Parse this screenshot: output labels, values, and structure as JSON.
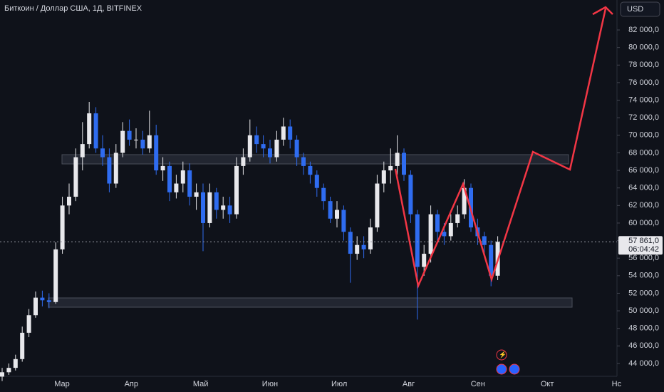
{
  "chart_data": {
    "type": "candlestick",
    "title": "Биткоин / Доллар США, 1Д, BITFINEX",
    "currency": "USD",
    "x_labels": [
      "Мар",
      "Апр",
      "Май",
      "Июн",
      "Июл",
      "Авг",
      "Сен",
      "Окт",
      "Нс"
    ],
    "ylim": [
      42000,
      84000
    ],
    "yticks": [
      {
        "value": 44000,
        "label": "44 000,0"
      },
      {
        "value": 46000,
        "label": "46 000,0"
      },
      {
        "value": 48000,
        "label": "48 000,0"
      },
      {
        "value": 50000,
        "label": "50 000,0"
      },
      {
        "value": 52000,
        "label": "52 000,0"
      },
      {
        "value": 54000,
        "label": "54 000,0"
      },
      {
        "value": 56000,
        "label": "56 000,0"
      },
      {
        "value": 58000,
        "label": "58 000,0"
      },
      {
        "value": 60000,
        "label": "60 000,0"
      },
      {
        "value": 62000,
        "label": "62 000,0"
      },
      {
        "value": 64000,
        "label": "64 000,0"
      },
      {
        "value": 66000,
        "label": "66 000,0"
      },
      {
        "value": 68000,
        "label": "68 000,0"
      },
      {
        "value": 70000,
        "label": "70 000,0"
      },
      {
        "value": 72000,
        "label": "72 000,0"
      },
      {
        "value": 74000,
        "label": "74 000,0"
      },
      {
        "value": 76000,
        "label": "76 000,0"
      },
      {
        "value": 78000,
        "label": "78 000,0"
      },
      {
        "value": 80000,
        "label": "80 000,0"
      },
      {
        "value": 82000,
        "label": "82 000,0"
      }
    ],
    "up_color": "#e8e8ec",
    "down_color": "#2f6cf0",
    "open": [
      42500,
      43000,
      43500,
      44500,
      47500,
      49500,
      51500,
      51200,
      51000,
      57000,
      62000,
      63000,
      67500,
      69000,
      72500,
      68500,
      67500,
      64500,
      68000,
      70500,
      69500,
      69500,
      68500,
      70000,
      66000,
      66500,
      63500,
      64500,
      66000,
      63000,
      63500,
      60000,
      63500,
      61500,
      62000,
      61000,
      66500,
      67500,
      70000,
      69000,
      68500,
      67500,
      69500,
      71000,
      69500,
      67500,
      66500,
      65500,
      64000,
      62500,
      60500,
      61500,
      59000,
      56500,
      57500,
      57000,
      59500,
      64500,
      66000,
      66500,
      68000,
      65500,
      61000,
      55000,
      56500,
      61000,
      59000,
      58500,
      60000,
      61000,
      64000,
      59500,
      58500,
      57500,
      54000
    ],
    "high": [
      43500,
      44000,
      45000,
      48200,
      50200,
      52200,
      52300,
      52000,
      57800,
      63000,
      64500,
      68500,
      71500,
      73800,
      73200,
      70000,
      68500,
      69000,
      71500,
      71800,
      70800,
      70500,
      72800,
      71200,
      67500,
      67000,
      65500,
      67000,
      66800,
      64500,
      64500,
      64500,
      64000,
      63000,
      63000,
      67500,
      68500,
      71800,
      71000,
      70000,
      69500,
      70500,
      72000,
      71800,
      70000,
      68000,
      67000,
      66000,
      64500,
      63000,
      62500,
      62000,
      59500,
      58500,
      58500,
      60500,
      65500,
      67000,
      68500,
      70000,
      68500,
      66000,
      61500,
      57500,
      62000,
      61500,
      60000,
      61000,
      62000,
      65000,
      64500,
      60500,
      59000,
      58000,
      58500
    ],
    "low": [
      42000,
      42700,
      43200,
      44200,
      47000,
      49200,
      50500,
      50300,
      50800,
      56500,
      61000,
      62500,
      66000,
      68500,
      68000,
      66500,
      63500,
      64000,
      67500,
      68800,
      68500,
      67800,
      68000,
      65500,
      64800,
      62500,
      62800,
      63500,
      62000,
      61500,
      56800,
      59500,
      60500,
      60500,
      60000,
      60500,
      65500,
      67000,
      68000,
      67500,
      66800,
      67000,
      68800,
      68500,
      66500,
      65500,
      64500,
      63000,
      61500,
      60000,
      59500,
      58000,
      53200,
      55800,
      56000,
      56500,
      59000,
      63500,
      64500,
      65500,
      64800,
      60000,
      49000,
      54000,
      55500,
      58000,
      57500,
      58000,
      59500,
      60500,
      59000,
      57500,
      56500,
      52800,
      53500
    ],
    "close": [
      43000,
      43500,
      44500,
      47500,
      49500,
      51500,
      51200,
      51000,
      57000,
      62000,
      63000,
      67500,
      69000,
      72500,
      68500,
      67500,
      64500,
      68000,
      70500,
      69500,
      69500,
      68500,
      70000,
      66000,
      66500,
      63500,
      64500,
      66000,
      63000,
      63500,
      60000,
      63500,
      61500,
      62000,
      61000,
      66500,
      67500,
      70000,
      69000,
      68500,
      67500,
      69500,
      71000,
      69500,
      67500,
      66500,
      65500,
      64000,
      62500,
      60500,
      61500,
      59000,
      56500,
      57500,
      57000,
      59500,
      64500,
      66000,
      66500,
      68000,
      65500,
      61000,
      55000,
      56500,
      61000,
      59000,
      58500,
      60000,
      61000,
      64000,
      59500,
      58500,
      57500,
      54000,
      57861
    ],
    "last_price_label": "57 861,0",
    "countdown": "06:04:42"
  }
}
